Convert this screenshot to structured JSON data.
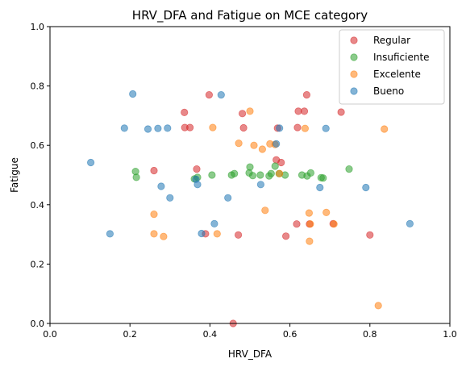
{
  "chart_data": {
    "type": "scatter",
    "title": "HRV_DFA and Fatigue on MCE category",
    "xlabel": "HRV_DFA",
    "ylabel": "Fatigue",
    "xlim": [
      0.0,
      1.0
    ],
    "ylim": [
      0.0,
      1.0
    ],
    "xticks": [
      "0.0",
      "0.2",
      "0.4",
      "0.6",
      "0.8",
      "1.0"
    ],
    "yticks": [
      "0.0",
      "0.2",
      "0.4",
      "0.6",
      "0.8",
      "1.0"
    ],
    "grid": false,
    "legend_position": "top-right",
    "marker_alpha": 0.55,
    "series": [
      {
        "name": "Regular",
        "color": "#d62728",
        "points": [
          [
            0.336,
            0.711
          ],
          [
            0.337,
            0.66
          ],
          [
            0.35,
            0.66
          ],
          [
            0.367,
            0.52
          ],
          [
            0.389,
            0.302
          ],
          [
            0.398,
            0.77
          ],
          [
            0.471,
            0.298
          ],
          [
            0.481,
            0.707
          ],
          [
            0.484,
            0.659
          ],
          [
            0.458,
            0.0
          ],
          [
            0.566,
            0.551
          ],
          [
            0.569,
            0.658
          ],
          [
            0.578,
            0.542
          ],
          [
            0.59,
            0.294
          ],
          [
            0.617,
            0.335
          ],
          [
            0.619,
            0.66
          ],
          [
            0.621,
            0.715
          ],
          [
            0.636,
            0.715
          ],
          [
            0.642,
            0.77
          ],
          [
            0.649,
            0.335
          ],
          [
            0.708,
            0.336
          ],
          [
            0.728,
            0.712
          ],
          [
            0.8,
            0.298
          ],
          [
            0.26,
            0.515
          ]
        ]
      },
      {
        "name": "Insuficiente",
        "color": "#2ca02c",
        "points": [
          [
            0.214,
            0.512
          ],
          [
            0.216,
            0.492
          ],
          [
            0.361,
            0.487
          ],
          [
            0.369,
            0.492
          ],
          [
            0.405,
            0.5
          ],
          [
            0.454,
            0.5
          ],
          [
            0.461,
            0.505
          ],
          [
            0.498,
            0.507
          ],
          [
            0.5,
            0.527
          ],
          [
            0.507,
            0.498
          ],
          [
            0.526,
            0.5
          ],
          [
            0.548,
            0.497
          ],
          [
            0.553,
            0.505
          ],
          [
            0.563,
            0.53
          ],
          [
            0.573,
            0.505
          ],
          [
            0.588,
            0.5
          ],
          [
            0.63,
            0.5
          ],
          [
            0.643,
            0.497
          ],
          [
            0.652,
            0.507
          ],
          [
            0.678,
            0.491
          ],
          [
            0.683,
            0.49
          ],
          [
            0.748,
            0.52
          ]
        ]
      },
      {
        "name": "Excelente",
        "color": "#ff7f0e",
        "points": [
          [
            0.26,
            0.368
          ],
          [
            0.26,
            0.302
          ],
          [
            0.284,
            0.293
          ],
          [
            0.407,
            0.66
          ],
          [
            0.418,
            0.302
          ],
          [
            0.472,
            0.607
          ],
          [
            0.5,
            0.715
          ],
          [
            0.51,
            0.6
          ],
          [
            0.531,
            0.587
          ],
          [
            0.538,
            0.381
          ],
          [
            0.55,
            0.605
          ],
          [
            0.563,
            0.603
          ],
          [
            0.574,
            0.505
          ],
          [
            0.638,
            0.657
          ],
          [
            0.648,
            0.372
          ],
          [
            0.649,
            0.277
          ],
          [
            0.651,
            0.335
          ],
          [
            0.691,
            0.374
          ],
          [
            0.71,
            0.335
          ],
          [
            0.821,
            0.06
          ],
          [
            0.836,
            0.655
          ]
        ]
      },
      {
        "name": "Bueno",
        "color": "#1f77b4",
        "points": [
          [
            0.102,
            0.542
          ],
          [
            0.15,
            0.302
          ],
          [
            0.186,
            0.658
          ],
          [
            0.207,
            0.773
          ],
          [
            0.245,
            0.655
          ],
          [
            0.27,
            0.657
          ],
          [
            0.278,
            0.462
          ],
          [
            0.294,
            0.658
          ],
          [
            0.3,
            0.423
          ],
          [
            0.365,
            0.486
          ],
          [
            0.369,
            0.468
          ],
          [
            0.379,
            0.303
          ],
          [
            0.411,
            0.336
          ],
          [
            0.428,
            0.77
          ],
          [
            0.445,
            0.423
          ],
          [
            0.527,
            0.468
          ],
          [
            0.566,
            0.605
          ],
          [
            0.574,
            0.658
          ],
          [
            0.675,
            0.458
          ],
          [
            0.69,
            0.657
          ],
          [
            0.79,
            0.458
          ],
          [
            0.9,
            0.336
          ]
        ]
      }
    ]
  }
}
